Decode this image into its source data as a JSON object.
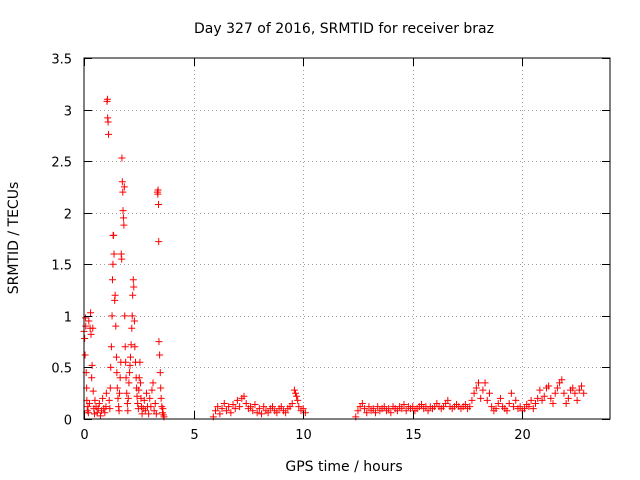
{
  "chart_data": {
    "type": "scatter",
    "title": "Day 327 of 2016, SRMTID for receiver braz",
    "xlabel": "GPS time / hours",
    "ylabel": "SRMTID / TECUs",
    "xlim": [
      0,
      24
    ],
    "ylim": [
      0,
      3.5
    ],
    "xticks": [
      0,
      5,
      10,
      15,
      20
    ],
    "xtick_labels": [
      "0",
      "5",
      "10",
      "15",
      "20"
    ],
    "yticks": [
      0,
      0.5,
      1,
      1.5,
      2,
      2.5,
      3,
      3.5
    ],
    "ytick_labels": [
      "0",
      "0.5",
      "1",
      "1.5",
      "2",
      "2.5",
      "3",
      "3.5"
    ],
    "grid": true,
    "marker": "+",
    "series": [
      {
        "name": "SRMTID",
        "color": "#ff0000",
        "points": [
          [
            0.0,
            0.85
          ],
          [
            0.03,
            0.78
          ],
          [
            0.05,
            0.62
          ],
          [
            0.07,
            0.98
          ],
          [
            0.08,
            0.9
          ],
          [
            0.1,
            0.45
          ],
          [
            0.12,
            0.3
          ],
          [
            0.13,
            0.18
          ],
          [
            0.15,
            0.08
          ],
          [
            0.18,
            0.12
          ],
          [
            0.2,
            0.06
          ],
          [
            0.22,
            0.95
          ],
          [
            0.25,
            0.15
          ],
          [
            0.28,
            0.88
          ],
          [
            0.3,
            1.03
          ],
          [
            0.32,
            0.82
          ],
          [
            0.35,
            0.4
          ],
          [
            0.37,
            0.52
          ],
          [
            0.4,
            0.88
          ],
          [
            0.42,
            0.27
          ],
          [
            0.45,
            0.1
          ],
          [
            0.48,
            0.05
          ],
          [
            0.5,
            0.18
          ],
          [
            0.55,
            0.12
          ],
          [
            0.6,
            0.06
          ],
          [
            0.65,
            0.1
          ],
          [
            0.7,
            0.15
          ],
          [
            0.75,
            0.03
          ],
          [
            0.8,
            0.08
          ],
          [
            0.85,
            0.2
          ],
          [
            0.9,
            0.1
          ],
          [
            0.95,
            0.06
          ],
          [
            1.0,
            0.12
          ],
          [
            1.02,
            0.25
          ],
          [
            1.05,
            3.08
          ],
          [
            1.07,
            3.1
          ],
          [
            1.08,
            2.92
          ],
          [
            1.1,
            2.88
          ],
          [
            1.12,
            2.76
          ],
          [
            1.15,
            0.18
          ],
          [
            1.18,
            0.1
          ],
          [
            1.2,
            0.3
          ],
          [
            1.22,
            0.5
          ],
          [
            1.25,
            0.7
          ],
          [
            1.28,
            1.0
          ],
          [
            1.3,
            1.35
          ],
          [
            1.32,
            1.5
          ],
          [
            1.33,
            1.78
          ],
          [
            1.35,
            1.78
          ],
          [
            1.37,
            1.6
          ],
          [
            1.4,
            1.15
          ],
          [
            1.42,
            1.2
          ],
          [
            1.45,
            0.9
          ],
          [
            1.48,
            0.6
          ],
          [
            1.5,
            0.45
          ],
          [
            1.52,
            0.3
          ],
          [
            1.55,
            0.2
          ],
          [
            1.58,
            0.12
          ],
          [
            1.6,
            0.08
          ],
          [
            1.62,
            0.25
          ],
          [
            1.65,
            0.4
          ],
          [
            1.68,
            0.55
          ],
          [
            1.7,
            1.6
          ],
          [
            1.72,
            1.55
          ],
          [
            1.73,
            2.53
          ],
          [
            1.75,
            2.3
          ],
          [
            1.77,
            2.2
          ],
          [
            1.78,
            2.02
          ],
          [
            1.8,
            1.95
          ],
          [
            1.82,
            1.88
          ],
          [
            1.84,
            2.25
          ],
          [
            1.86,
            1.0
          ],
          [
            1.88,
            0.7
          ],
          [
            1.9,
            0.55
          ],
          [
            1.92,
            0.4
          ],
          [
            1.95,
            0.25
          ],
          [
            1.98,
            0.15
          ],
          [
            2.0,
            0.08
          ],
          [
            2.02,
            0.2
          ],
          [
            2.05,
            0.35
          ],
          [
            2.08,
            0.45
          ],
          [
            2.1,
            0.52
          ],
          [
            2.12,
            0.6
          ],
          [
            2.15,
            0.72
          ],
          [
            2.18,
            0.88
          ],
          [
            2.2,
            1.0
          ],
          [
            2.22,
            1.2
          ],
          [
            2.25,
            1.35
          ],
          [
            2.27,
            1.28
          ],
          [
            2.3,
            0.95
          ],
          [
            2.32,
            0.7
          ],
          [
            2.35,
            0.55
          ],
          [
            2.38,
            0.4
          ],
          [
            2.4,
            0.3
          ],
          [
            2.42,
            0.22
          ],
          [
            2.45,
            0.15
          ],
          [
            2.48,
            0.1
          ],
          [
            2.5,
            0.28
          ],
          [
            2.52,
            0.4
          ],
          [
            2.55,
            0.55
          ],
          [
            2.58,
            0.35
          ],
          [
            2.6,
            0.2
          ],
          [
            2.62,
            0.12
          ],
          [
            2.65,
            0.05
          ],
          [
            2.7,
            0.1
          ],
          [
            2.75,
            0.18
          ],
          [
            2.8,
            0.08
          ],
          [
            2.85,
            0.25
          ],
          [
            2.9,
            0.12
          ],
          [
            2.95,
            0.05
          ],
          [
            3.0,
            0.2
          ],
          [
            3.05,
            0.12
          ],
          [
            3.1,
            0.28
          ],
          [
            3.15,
            0.35
          ],
          [
            3.2,
            0.08
          ],
          [
            3.25,
            0.15
          ],
          [
            3.3,
            0.05
          ],
          [
            3.35,
            2.2
          ],
          [
            3.37,
            2.18
          ],
          [
            3.38,
            2.22
          ],
          [
            3.4,
            2.08
          ],
          [
            3.41,
            1.72
          ],
          [
            3.42,
            0.75
          ],
          [
            3.45,
            0.62
          ],
          [
            3.48,
            0.45
          ],
          [
            3.5,
            0.3
          ],
          [
            3.52,
            0.2
          ],
          [
            3.55,
            0.12
          ],
          [
            3.58,
            0.06
          ],
          [
            3.6,
            0.1
          ],
          [
            3.62,
            0.04
          ],
          [
            3.65,
            0.02
          ],
          [
            5.9,
            0.02
          ],
          [
            6.0,
            0.08
          ],
          [
            6.1,
            0.12
          ],
          [
            6.2,
            0.05
          ],
          [
            6.3,
            0.1
          ],
          [
            6.4,
            0.15
          ],
          [
            6.5,
            0.08
          ],
          [
            6.6,
            0.12
          ],
          [
            6.7,
            0.06
          ],
          [
            6.8,
            0.14
          ],
          [
            6.9,
            0.1
          ],
          [
            7.0,
            0.18
          ],
          [
            7.1,
            0.12
          ],
          [
            7.2,
            0.2
          ],
          [
            7.3,
            0.22
          ],
          [
            7.4,
            0.15
          ],
          [
            7.5,
            0.1
          ],
          [
            7.6,
            0.12
          ],
          [
            7.7,
            0.08
          ],
          [
            7.8,
            0.14
          ],
          [
            7.9,
            0.06
          ],
          [
            8.0,
            0.1
          ],
          [
            8.1,
            0.05
          ],
          [
            8.2,
            0.12
          ],
          [
            8.3,
            0.08
          ],
          [
            8.4,
            0.06
          ],
          [
            8.5,
            0.1
          ],
          [
            8.6,
            0.12
          ],
          [
            8.7,
            0.08
          ],
          [
            8.8,
            0.06
          ],
          [
            8.9,
            0.1
          ],
          [
            9.0,
            0.12
          ],
          [
            9.1,
            0.08
          ],
          [
            9.2,
            0.06
          ],
          [
            9.3,
            0.1
          ],
          [
            9.4,
            0.12
          ],
          [
            9.5,
            0.15
          ],
          [
            9.6,
            0.28
          ],
          [
            9.65,
            0.25
          ],
          [
            9.7,
            0.22
          ],
          [
            9.75,
            0.18
          ],
          [
            9.8,
            0.12
          ],
          [
            9.9,
            0.08
          ],
          [
            10.0,
            0.1
          ],
          [
            10.1,
            0.06
          ],
          [
            12.4,
            0.02
          ],
          [
            12.5,
            0.08
          ],
          [
            12.6,
            0.12
          ],
          [
            12.7,
            0.15
          ],
          [
            12.8,
            0.1
          ],
          [
            12.9,
            0.06
          ],
          [
            13.0,
            0.12
          ],
          [
            13.1,
            0.08
          ],
          [
            13.2,
            0.1
          ],
          [
            13.3,
            0.06
          ],
          [
            13.4,
            0.12
          ],
          [
            13.5,
            0.08
          ],
          [
            13.6,
            0.1
          ],
          [
            13.7,
            0.12
          ],
          [
            13.8,
            0.08
          ],
          [
            13.9,
            0.1
          ],
          [
            14.0,
            0.06
          ],
          [
            14.1,
            0.12
          ],
          [
            14.2,
            0.1
          ],
          [
            14.3,
            0.08
          ],
          [
            14.4,
            0.12
          ],
          [
            14.5,
            0.1
          ],
          [
            14.6,
            0.14
          ],
          [
            14.7,
            0.08
          ],
          [
            14.8,
            0.12
          ],
          [
            14.9,
            0.1
          ],
          [
            15.0,
            0.12
          ],
          [
            15.1,
            0.08
          ],
          [
            15.2,
            0.1
          ],
          [
            15.3,
            0.12
          ],
          [
            15.4,
            0.14
          ],
          [
            15.5,
            0.1
          ],
          [
            15.6,
            0.12
          ],
          [
            15.7,
            0.08
          ],
          [
            15.8,
            0.12
          ],
          [
            15.9,
            0.1
          ],
          [
            16.0,
            0.12
          ],
          [
            16.1,
            0.15
          ],
          [
            16.2,
            0.12
          ],
          [
            16.3,
            0.1
          ],
          [
            16.4,
            0.12
          ],
          [
            16.5,
            0.15
          ],
          [
            16.6,
            0.18
          ],
          [
            16.7,
            0.12
          ],
          [
            16.8,
            0.1
          ],
          [
            16.9,
            0.12
          ],
          [
            17.0,
            0.14
          ],
          [
            17.1,
            0.12
          ],
          [
            17.2,
            0.1
          ],
          [
            17.3,
            0.12
          ],
          [
            17.4,
            0.14
          ],
          [
            17.5,
            0.1
          ],
          [
            17.6,
            0.12
          ],
          [
            17.7,
            0.18
          ],
          [
            17.8,
            0.25
          ],
          [
            17.9,
            0.3
          ],
          [
            18.0,
            0.35
          ],
          [
            18.1,
            0.2
          ],
          [
            18.2,
            0.28
          ],
          [
            18.3,
            0.35
          ],
          [
            18.4,
            0.18
          ],
          [
            18.5,
            0.25
          ],
          [
            18.6,
            0.12
          ],
          [
            18.7,
            0.08
          ],
          [
            18.8,
            0.1
          ],
          [
            18.9,
            0.15
          ],
          [
            19.0,
            0.2
          ],
          [
            19.1,
            0.12
          ],
          [
            19.2,
            0.1
          ],
          [
            19.3,
            0.08
          ],
          [
            19.4,
            0.15
          ],
          [
            19.5,
            0.25
          ],
          [
            19.6,
            0.12
          ],
          [
            19.7,
            0.18
          ],
          [
            19.8,
            0.1
          ],
          [
            19.9,
            0.12
          ],
          [
            20.0,
            0.08
          ],
          [
            20.1,
            0.1
          ],
          [
            20.2,
            0.14
          ],
          [
            20.3,
            0.12
          ],
          [
            20.4,
            0.18
          ],
          [
            20.5,
            0.1
          ],
          [
            20.6,
            0.15
          ],
          [
            20.7,
            0.2
          ],
          [
            20.8,
            0.28
          ],
          [
            20.9,
            0.18
          ],
          [
            21.0,
            0.22
          ],
          [
            21.1,
            0.3
          ],
          [
            21.2,
            0.32
          ],
          [
            21.3,
            0.2
          ],
          [
            21.4,
            0.15
          ],
          [
            21.5,
            0.25
          ],
          [
            21.6,
            0.3
          ],
          [
            21.7,
            0.35
          ],
          [
            21.8,
            0.38
          ],
          [
            21.9,
            0.25
          ],
          [
            22.0,
            0.15
          ],
          [
            22.1,
            0.2
          ],
          [
            22.2,
            0.28
          ],
          [
            22.3,
            0.3
          ],
          [
            22.4,
            0.25
          ],
          [
            22.5,
            0.18
          ],
          [
            22.6,
            0.28
          ],
          [
            22.7,
            0.32
          ],
          [
            22.8,
            0.25
          ]
        ]
      }
    ]
  }
}
